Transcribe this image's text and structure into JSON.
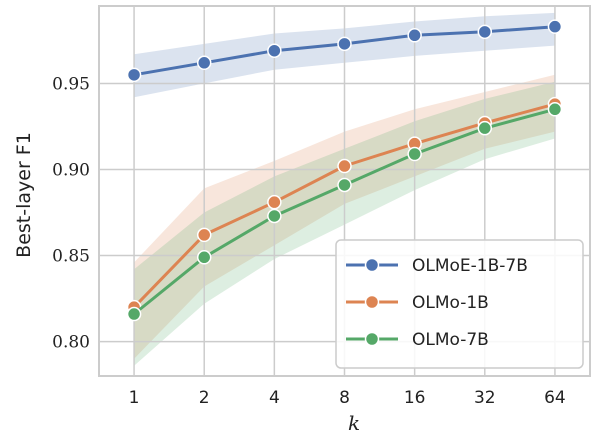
{
  "chart_data": {
    "type": "line",
    "xlabel": "k",
    "ylabel": "Best-layer F1",
    "x": [
      1,
      2,
      4,
      8,
      16,
      32,
      64
    ],
    "categories": [
      "1",
      "2",
      "4",
      "8",
      "16",
      "32",
      "64"
    ],
    "yticks": [
      "0.80",
      "0.85",
      "0.90",
      "0.95"
    ],
    "ylim": [
      0.78,
      0.995
    ],
    "x_scale": "log2",
    "grid": true,
    "legend_position": "lower-right",
    "series": [
      {
        "name": "OLMoE-1B-7B",
        "color": "#4c72b0",
        "values": [
          0.955,
          0.962,
          0.969,
          0.973,
          0.978,
          0.98,
          0.983
        ],
        "lower": [
          0.942,
          0.95,
          0.958,
          0.962,
          0.966,
          0.969,
          0.972
        ],
        "upper": [
          0.967,
          0.973,
          0.979,
          0.982,
          0.986,
          0.989,
          0.991
        ]
      },
      {
        "name": "OLMo-1B",
        "color": "#dd8452",
        "values": [
          0.82,
          0.862,
          0.881,
          0.902,
          0.915,
          0.927,
          0.938
        ],
        "lower": [
          0.79,
          0.832,
          0.856,
          0.88,
          0.896,
          0.912,
          0.922
        ],
        "upper": [
          0.846,
          0.889,
          0.905,
          0.922,
          0.935,
          0.945,
          0.955
        ]
      },
      {
        "name": "OLMo-7B",
        "color": "#55a868",
        "values": [
          0.816,
          0.849,
          0.873,
          0.891,
          0.909,
          0.924,
          0.935
        ],
        "lower": [
          0.786,
          0.822,
          0.848,
          0.868,
          0.888,
          0.906,
          0.918
        ],
        "upper": [
          0.842,
          0.875,
          0.896,
          0.912,
          0.928,
          0.941,
          0.951
        ]
      }
    ]
  }
}
